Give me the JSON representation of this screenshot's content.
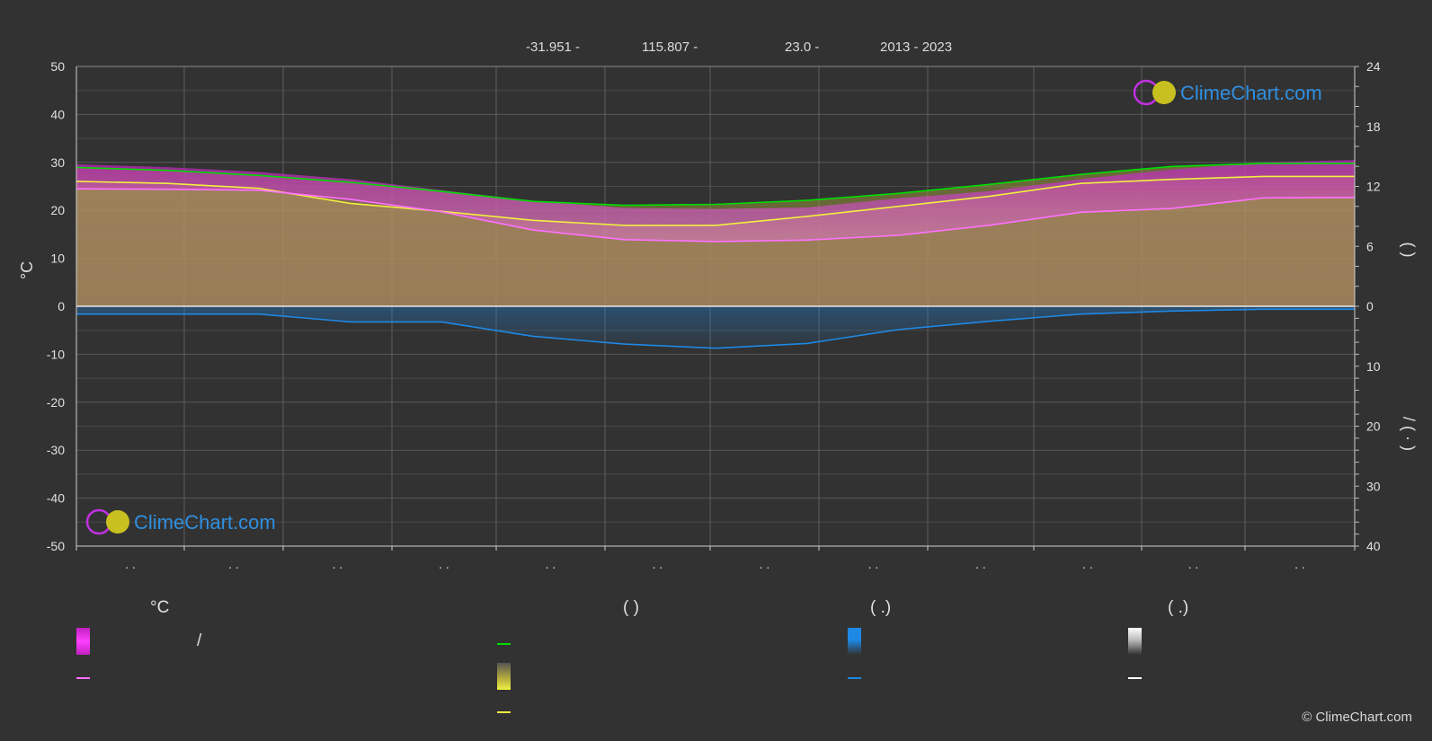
{
  "header": {
    "lat": "-31.951 -",
    "lon": "115.807 -",
    "elev": "23.0 -",
    "years": "2013 - 2023"
  },
  "colors": {
    "background": "#323232",
    "sunshine": "#00dd00",
    "daylight_fill": "#b8b840",
    "sunshine_mean": "#f0f040",
    "temp_band": "#c030c0",
    "temp_mean": "#ff70ff",
    "precip": "#1e88e5",
    "snow": "#ffffff"
  },
  "legend": {
    "temp_heading": "°C",
    "sun_heading": "(          )",
    "rain_heading": "(    .)",
    "snow_heading": "(    .)",
    "temp_range_label": "/"
  },
  "brand": "ClimeChart.com",
  "copyright": "© ClimeChart.com",
  "chart_data": {
    "type": "area",
    "months_tick_text": [
      ". .",
      ". .",
      ". .",
      ". .",
      ". .",
      ". .",
      ". .",
      ". .",
      ". .",
      ". .",
      ". .",
      ". ."
    ],
    "left_axis": {
      "label": "°C",
      "range": [
        -50,
        50
      ],
      "ticks": [
        50,
        40,
        30,
        20,
        10,
        0,
        -10,
        -20,
        -30,
        -40,
        -50
      ]
    },
    "right_axis_top": {
      "label": "( )",
      "range": [
        0,
        24
      ],
      "ticks": [
        24,
        18,
        12,
        6,
        0
      ]
    },
    "right_axis_bottom": {
      "label": "/ ( · )",
      "range": [
        0,
        40
      ],
      "ticks": [
        10,
        20,
        30,
        40
      ]
    },
    "grid": true,
    "series": [
      {
        "key": "daylight_hours",
        "values": [
          13.9,
          13.6,
          13.1,
          12.4,
          11.5,
          10.5,
          10.1,
          10.2,
          10.6,
          11.3,
          12.2,
          13.2,
          14.0,
          14.3,
          14.3
        ]
      },
      {
        "key": "sunshine_hours",
        "values": [
          12.5,
          12.3,
          11.8,
          10.3,
          9.5,
          8.6,
          8.1,
          8.1,
          9.0,
          10.0,
          11.0,
          12.3,
          12.7,
          13.0,
          13.0
        ]
      },
      {
        "key": "mean_temperature_c",
        "values": [
          24.5,
          24.4,
          24.2,
          22.3,
          19.7,
          15.9,
          13.9,
          13.5,
          13.8,
          14.8,
          16.9,
          19.6,
          20.4,
          22.6,
          22.7
        ]
      },
      {
        "key": "max_temperature_c",
        "values": [
          29.6,
          29.0,
          28.0,
          26.5,
          24.2,
          22.0,
          20.5,
          20.3,
          20.6,
          22.5,
          24.0,
          26.5,
          28.5,
          30.0,
          30.5
        ]
      },
      {
        "key": "precipitation_mm",
        "values": [
          1.3,
          1.3,
          1.3,
          2.6,
          2.6,
          5.0,
          6.3,
          7.0,
          6.2,
          3.9,
          2.5,
          1.3,
          0.8,
          0.5,
          0.5
        ]
      }
    ]
  }
}
